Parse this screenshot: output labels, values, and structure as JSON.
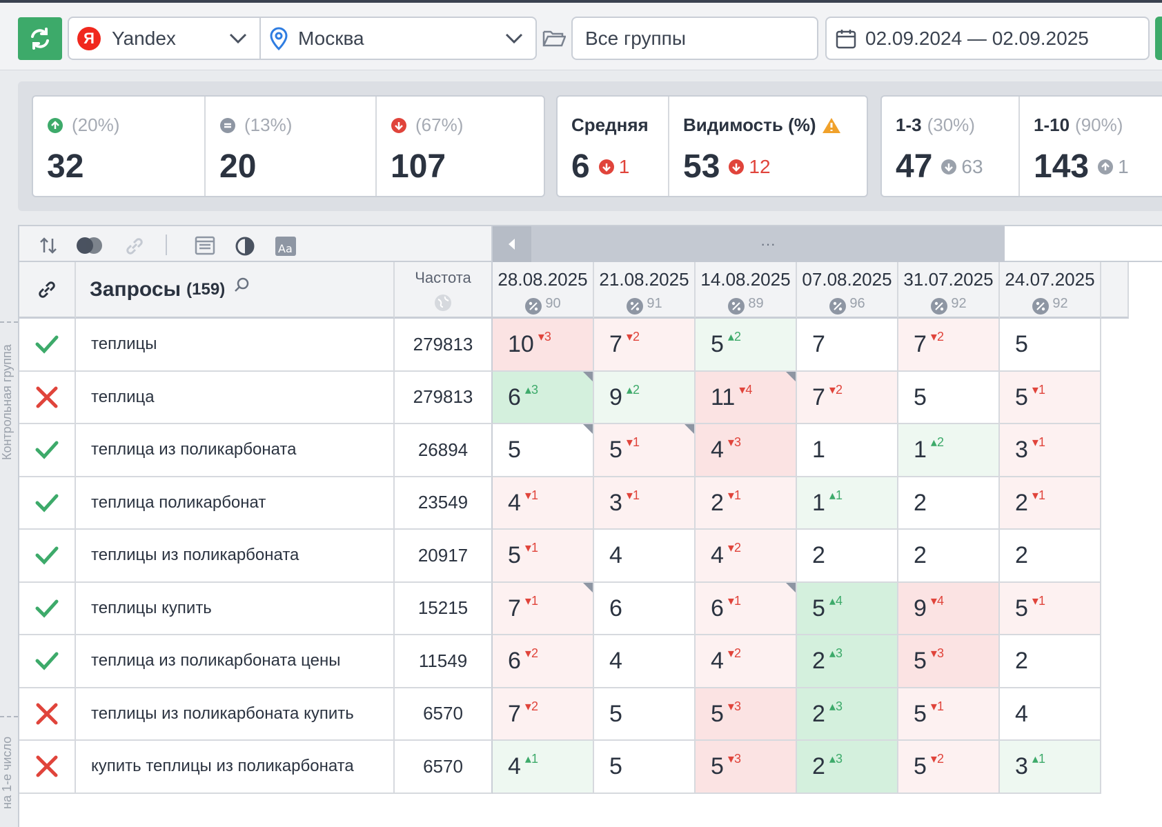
{
  "toolbar": {
    "engine": "Yandex",
    "city": "Москва",
    "group": "Все группы",
    "date_range": "02.09.2024 — 02.09.2025"
  },
  "stats": {
    "up": {
      "percent": "(20%)",
      "value": "32"
    },
    "same": {
      "percent": "(13%)",
      "value": "20"
    },
    "down": {
      "percent": "(67%)",
      "value": "107"
    },
    "avg": {
      "label": "Средняя",
      "value": "6",
      "delta": "1"
    },
    "visibility": {
      "label": "Видимость (%)",
      "value": "53",
      "delta": "12"
    },
    "top3": {
      "label": "1-3",
      "percent": "(30%)",
      "value": "47",
      "delta": "63"
    },
    "top10": {
      "label": "1-10",
      "percent": "(90%)",
      "value": "143",
      "delta": "1"
    }
  },
  "table": {
    "queries_label": "Запросы",
    "queries_count": "(159)",
    "freq_label": "Частота",
    "dates": [
      {
        "date": "28.08.2025",
        "pct": "90"
      },
      {
        "date": "21.08.2025",
        "pct": "91"
      },
      {
        "date": "14.08.2025",
        "pct": "89"
      },
      {
        "date": "07.08.2025",
        "pct": "96"
      },
      {
        "date": "31.07.2025",
        "pct": "92"
      },
      {
        "date": "24.07.2025",
        "pct": "92"
      }
    ],
    "side_labels": [
      "Контрольная группа",
      "на 1-е число"
    ],
    "rows": [
      {
        "status": "ok",
        "query": "теплицы",
        "freq": "279813",
        "cells": [
          [
            "10",
            "-3",
            "bg-r",
            0
          ],
          [
            "7",
            "-2",
            "bg-lr",
            0
          ],
          [
            "5",
            "+2",
            "bg-lg",
            0
          ],
          [
            "7",
            "",
            "bg-w",
            0
          ],
          [
            "7",
            "-2",
            "bg-lr",
            0
          ],
          [
            "5",
            "",
            "bg-w",
            0
          ]
        ]
      },
      {
        "status": "fail",
        "query": "теплица",
        "freq": "279813",
        "cells": [
          [
            "6",
            "+3",
            "bg-g",
            1
          ],
          [
            "9",
            "+2",
            "bg-lg",
            0
          ],
          [
            "11",
            "-4",
            "bg-r",
            1
          ],
          [
            "7",
            "-2",
            "bg-lr",
            0
          ],
          [
            "5",
            "",
            "bg-w",
            0
          ],
          [
            "5",
            "-1",
            "bg-lr",
            0
          ]
        ]
      },
      {
        "status": "ok",
        "query": "теплица из поликарбоната",
        "freq": "26894",
        "cells": [
          [
            "5",
            "",
            "bg-w",
            1
          ],
          [
            "5",
            "-1",
            "bg-lr",
            1
          ],
          [
            "4",
            "-3",
            "bg-r",
            0
          ],
          [
            "1",
            "",
            "bg-w",
            0
          ],
          [
            "1",
            "+2",
            "bg-lg",
            0
          ],
          [
            "3",
            "-1",
            "bg-lr",
            0
          ]
        ]
      },
      {
        "status": "ok",
        "query": "теплица поликарбонат",
        "freq": "23549",
        "cells": [
          [
            "4",
            "-1",
            "bg-lr",
            0
          ],
          [
            "3",
            "-1",
            "bg-lr",
            0
          ],
          [
            "2",
            "-1",
            "bg-lr",
            0
          ],
          [
            "1",
            "+1",
            "bg-lg",
            0
          ],
          [
            "2",
            "",
            "bg-w",
            0
          ],
          [
            "2",
            "-1",
            "bg-lr",
            0
          ]
        ]
      },
      {
        "status": "ok",
        "query": "теплицы из поликарбоната",
        "freq": "20917",
        "cells": [
          [
            "5",
            "-1",
            "bg-lr",
            0
          ],
          [
            "4",
            "",
            "bg-w",
            0
          ],
          [
            "4",
            "-2",
            "bg-lr",
            0
          ],
          [
            "2",
            "",
            "bg-w",
            0
          ],
          [
            "2",
            "",
            "bg-w",
            0
          ],
          [
            "2",
            "",
            "bg-w",
            0
          ]
        ]
      },
      {
        "status": "ok",
        "query": "теплицы купить",
        "freq": "15215",
        "cells": [
          [
            "7",
            "-1",
            "bg-lr",
            1
          ],
          [
            "6",
            "",
            "bg-w",
            0
          ],
          [
            "6",
            "-1",
            "bg-lr",
            1
          ],
          [
            "5",
            "+4",
            "bg-g",
            0
          ],
          [
            "9",
            "-4",
            "bg-r",
            0
          ],
          [
            "5",
            "-1",
            "bg-lr",
            0
          ]
        ]
      },
      {
        "status": "ok",
        "query": "теплица из поликарбоната цены",
        "freq": "11549",
        "cells": [
          [
            "6",
            "-2",
            "bg-lr",
            0
          ],
          [
            "4",
            "",
            "bg-w",
            0
          ],
          [
            "4",
            "-2",
            "bg-lr",
            0
          ],
          [
            "2",
            "+3",
            "bg-g",
            0
          ],
          [
            "5",
            "-3",
            "bg-r",
            0
          ],
          [
            "2",
            "",
            "bg-w",
            0
          ]
        ]
      },
      {
        "status": "fail",
        "query": "теплицы из поликарбоната купить",
        "freq": "6570",
        "cells": [
          [
            "7",
            "-2",
            "bg-lr",
            0
          ],
          [
            "5",
            "",
            "bg-w",
            0
          ],
          [
            "5",
            "-3",
            "bg-r",
            0
          ],
          [
            "2",
            "+3",
            "bg-g",
            0
          ],
          [
            "5",
            "-1",
            "bg-lr",
            0
          ],
          [
            "4",
            "",
            "bg-w",
            0
          ]
        ]
      },
      {
        "status": "fail",
        "query": "купить теплицы из поликарбоната",
        "freq": "6570",
        "cells": [
          [
            "4",
            "+1",
            "bg-lg",
            0
          ],
          [
            "5",
            "",
            "bg-w",
            0
          ],
          [
            "5",
            "-3",
            "bg-r",
            0
          ],
          [
            "2",
            "+3",
            "bg-g",
            0
          ],
          [
            "5",
            "-2",
            "bg-lr",
            0
          ],
          [
            "3",
            "+1",
            "bg-lg",
            0
          ]
        ]
      }
    ]
  }
}
